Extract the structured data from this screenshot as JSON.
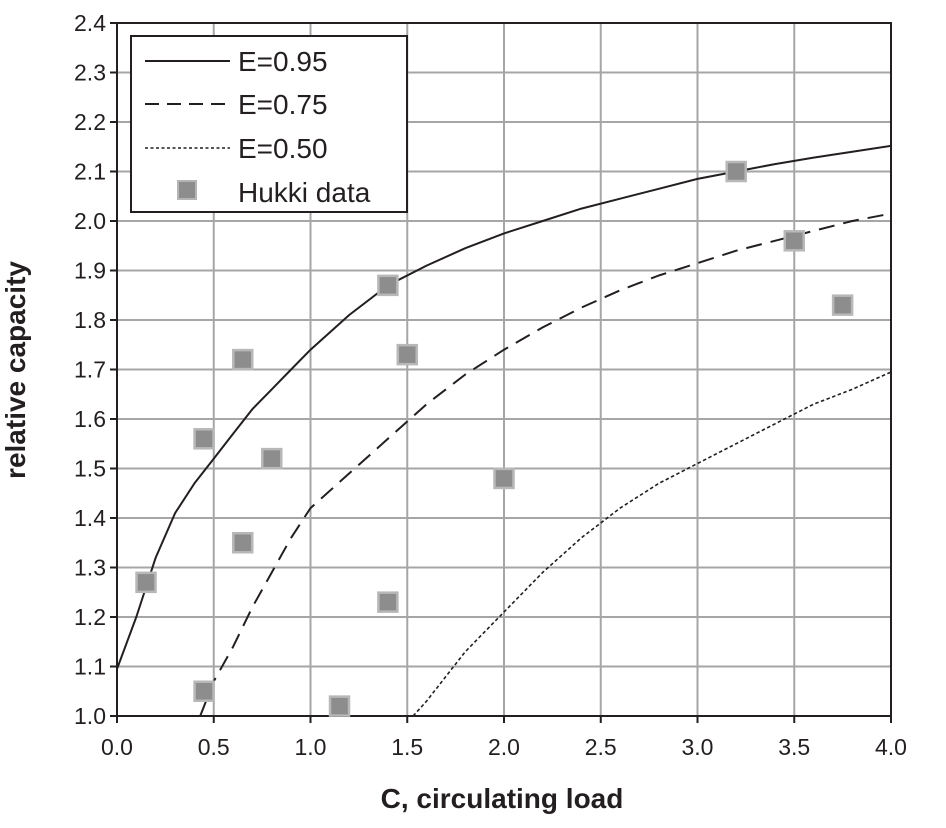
{
  "chart_data": {
    "type": "line",
    "title": "",
    "xlabel": "C, circulating load",
    "ylabel": "relative capacity",
    "xlim": [
      0.0,
      4.0
    ],
    "ylim": [
      1.0,
      2.4
    ],
    "x_ticks": [
      "0.0",
      "0.5",
      "1.0",
      "1.5",
      "2.0",
      "2.5",
      "3.0",
      "3.5",
      "4.0"
    ],
    "y_ticks": [
      "1.0",
      "1.1",
      "1.2",
      "1.3",
      "1.4",
      "1.5",
      "1.6",
      "1.7",
      "1.8",
      "1.9",
      "2.0",
      "2.1",
      "2.2",
      "2.3",
      "2.4"
    ],
    "grid": true,
    "legend_position": "top-left",
    "series": [
      {
        "name": "E=0.95",
        "style": "solid",
        "color": "#231f20",
        "x": [
          0.0,
          0.1,
          0.2,
          0.3,
          0.4,
          0.5,
          0.6,
          0.7,
          0.8,
          0.9,
          1.0,
          1.2,
          1.4,
          1.6,
          1.8,
          2.0,
          2.2,
          2.4,
          2.6,
          2.8,
          3.0,
          3.2,
          3.4,
          3.6,
          3.8,
          4.0
        ],
        "y": [
          1.095,
          1.2,
          1.32,
          1.41,
          1.47,
          1.52,
          1.57,
          1.62,
          1.66,
          1.7,
          1.74,
          1.81,
          1.87,
          1.91,
          1.945,
          1.975,
          2.0,
          2.025,
          2.045,
          2.065,
          2.085,
          2.1,
          2.115,
          2.128,
          2.14,
          2.152
        ]
      },
      {
        "name": "E=0.75",
        "style": "dashed",
        "color": "#231f20",
        "x": [
          0.43,
          0.5,
          0.6,
          0.7,
          0.8,
          0.9,
          1.0,
          1.2,
          1.4,
          1.6,
          1.8,
          2.0,
          2.2,
          2.4,
          2.6,
          2.8,
          3.0,
          3.2,
          3.4,
          3.6,
          3.8,
          4.0
        ],
        "y": [
          1.0,
          1.07,
          1.14,
          1.22,
          1.29,
          1.36,
          1.42,
          1.49,
          1.56,
          1.63,
          1.69,
          1.74,
          1.785,
          1.825,
          1.86,
          1.89,
          1.915,
          1.94,
          1.96,
          1.98,
          2.0,
          2.015
        ]
      },
      {
        "name": "E=0.50",
        "style": "dotted",
        "color": "#231f20",
        "x": [
          1.53,
          1.6,
          1.7,
          1.8,
          1.9,
          2.0,
          2.2,
          2.4,
          2.6,
          2.8,
          3.0,
          3.2,
          3.4,
          3.6,
          3.8,
          4.0
        ],
        "y": [
          1.0,
          1.03,
          1.08,
          1.13,
          1.17,
          1.21,
          1.29,
          1.36,
          1.42,
          1.47,
          1.51,
          1.55,
          1.59,
          1.63,
          1.66,
          1.695
        ]
      }
    ],
    "points": {
      "name": "Hukki data",
      "marker": "square",
      "color": "#8d8d8d",
      "x": [
        0.15,
        0.45,
        0.45,
        0.65,
        0.65,
        0.8,
        1.15,
        1.4,
        1.4,
        1.5,
        2.0,
        3.2,
        3.5,
        3.75
      ],
      "y": [
        1.27,
        1.05,
        1.56,
        1.72,
        1.35,
        1.52,
        1.02,
        1.87,
        1.23,
        1.73,
        1.48,
        2.1,
        1.96,
        1.83
      ]
    }
  }
}
